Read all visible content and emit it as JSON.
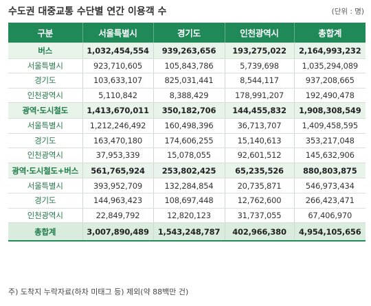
{
  "header": {
    "title": "수도권 대중교통 수단별 연간 이용객 수",
    "unit": "(단위 : 명)"
  },
  "table": {
    "columns": [
      "구분",
      "서울특별시",
      "경기도",
      "인천광역시",
      "총합계"
    ],
    "rows": [
      [
        "버스",
        "1,032,454,554",
        "939,263,656",
        "193,275,022",
        "2,164,993,232"
      ],
      [
        "서울특별시",
        "923,710,605",
        "105,843,786",
        "5,739,698",
        "1,035,294,089"
      ],
      [
        "경기도",
        "103,633,107",
        "825,031,441",
        "8,544,117",
        "937,208,665"
      ],
      [
        "인천광역시",
        "5,110,842",
        "8,388,429",
        "178,991,207",
        "192,490,478"
      ],
      [
        "광역·도시철도",
        "1,413,670,011",
        "350,182,706",
        "144,455,832",
        "1,908,308,549"
      ],
      [
        "서울특별시",
        "1,212,246,492",
        "160,498,396",
        "36,713,707",
        "1,409,458,595"
      ],
      [
        "경기도",
        "163,470,180",
        "174,606,255",
        "15,140,613",
        "353,217,048"
      ],
      [
        "인천광역시",
        "37,953,339",
        "15,078,055",
        "92,601,512",
        "145,632,906"
      ],
      [
        "광역·도시철도+버스",
        "561,765,924",
        "253,802,425",
        "65,235,526",
        "880,803,875"
      ],
      [
        "서울특별시",
        "393,952,709",
        "132,284,854",
        "20,735,871",
        "546,973,434"
      ],
      [
        "경기도",
        "144,963,423",
        "108,697,448",
        "12,762,600",
        "266,423,471"
      ],
      [
        "인천광역시",
        "22,849,792",
        "12,820,123",
        "31,737,055",
        "67,406,970"
      ],
      [
        "총합계",
        "3,007,890,489",
        "1,543,248,787",
        "402,966,380",
        "4,954,105,656"
      ]
    ]
  },
  "footnote": "주) 도착지 누락자료(하차 미태그 등) 제외(약 88백만 건)"
}
